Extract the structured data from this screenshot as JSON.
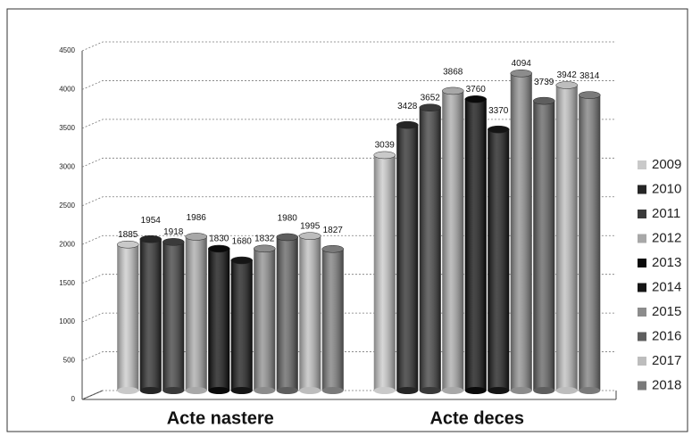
{
  "chart_data": {
    "type": "bar",
    "categories": [
      "Acte nastere",
      "Acte deces"
    ],
    "series": [
      {
        "name": "2009",
        "color": "#c9c9c9",
        "values": [
          1885,
          3039
        ]
      },
      {
        "name": "2010",
        "color": "#262626",
        "values": [
          1954,
          3428
        ]
      },
      {
        "name": "2011",
        "color": "#3a3a3a",
        "values": [
          1918,
          3652
        ]
      },
      {
        "name": "2012",
        "color": "#a8a8a8",
        "values": [
          1986,
          3868
        ]
      },
      {
        "name": "2013",
        "color": "#0a0a0a",
        "values": [
          1830,
          3760
        ]
      },
      {
        "name": "2014",
        "color": "#151515",
        "values": [
          1680,
          3370
        ]
      },
      {
        "name": "2015",
        "color": "#8c8c8c",
        "values": [
          1832,
          4094
        ]
      },
      {
        "name": "2016",
        "color": "#5e5e5e",
        "values": [
          1980,
          3739
        ]
      },
      {
        "name": "2017",
        "color": "#bdbdbd",
        "values": [
          1995,
          3942
        ]
      },
      {
        "name": "2018",
        "color": "#7a7a7a",
        "values": [
          1827,
          3814
        ]
      }
    ],
    "ylim": [
      0,
      4500
    ],
    "yticks": [
      0,
      500,
      1000,
      1500,
      2000,
      2500,
      3000,
      3500,
      4000,
      4500
    ],
    "grid": true,
    "legend": "right"
  }
}
